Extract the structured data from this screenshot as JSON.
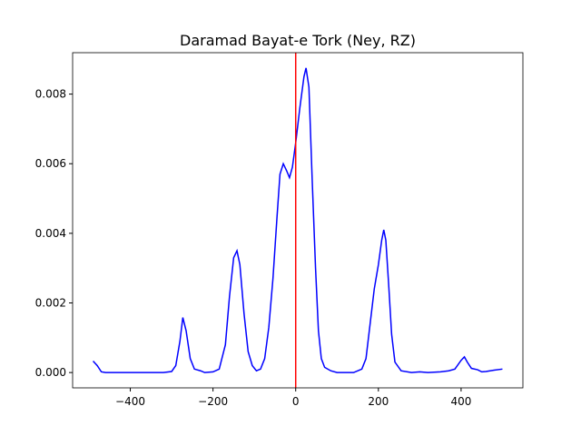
{
  "chart_data": {
    "type": "line",
    "title": "Daramad Bayat-e Tork (Ney, RZ)",
    "x": [
      -490,
      -480,
      -470,
      -460,
      -320,
      -300,
      -290,
      -280,
      -273,
      -265,
      -255,
      -245,
      -230,
      -220,
      -200,
      -185,
      -170,
      -160,
      -150,
      -142,
      -135,
      -125,
      -115,
      -105,
      -95,
      -85,
      -75,
      -65,
      -55,
      -45,
      -38,
      -30,
      -22,
      -15,
      -8,
      0,
      10,
      20,
      25,
      32,
      40,
      48,
      55,
      62,
      70,
      85,
      100,
      140,
      160,
      170,
      180,
      190,
      200,
      208,
      213,
      218,
      225,
      232,
      240,
      255,
      280,
      300,
      320,
      350,
      370,
      385,
      400,
      408,
      415,
      425,
      440,
      450,
      460,
      480,
      500
    ],
    "series": [
      {
        "color": "#0000ff",
        "values": [
          0.00033,
          0.0002,
          2e-05,
          0,
          0,
          3e-05,
          0.0002,
          0.0009,
          0.00158,
          0.0012,
          0.0004,
          0.0001,
          5e-05,
          0,
          2e-05,
          0.0001,
          0.0008,
          0.0022,
          0.0033,
          0.0035,
          0.0031,
          0.0017,
          0.0006,
          0.0002,
          5e-05,
          0.0001,
          0.0004,
          0.0013,
          0.0027,
          0.0045,
          0.0057,
          0.006,
          0.0058,
          0.0056,
          0.0059,
          0.0066,
          0.0076,
          0.0085,
          0.00875,
          0.0082,
          0.0055,
          0.003,
          0.0012,
          0.0004,
          0.00015,
          5e-05,
          0,
          0,
          0.0001,
          0.0004,
          0.0014,
          0.0024,
          0.0031,
          0.0038,
          0.0041,
          0.0038,
          0.0025,
          0.0011,
          0.0003,
          5e-05,
          0,
          2e-05,
          0,
          2e-05,
          5e-05,
          0.0001,
          0.00035,
          0.00045,
          0.0003,
          0.00012,
          8e-05,
          2e-05,
          3e-05,
          7e-05,
          0.0001
        ]
      }
    ],
    "vlines": [
      {
        "x": 0,
        "color": "#ff0000"
      }
    ],
    "xlim": [
      -539.5,
      549.5
    ],
    "xticks": [
      {
        "value": -400,
        "label": "−400"
      },
      {
        "value": -200,
        "label": "−200"
      },
      0,
      200,
      400
    ],
    "ylim": [
      -0.00044,
      0.00919
    ],
    "yticks": [
      {
        "value": 0,
        "label": "0.000"
      },
      {
        "value": 0.002,
        "label": "0.002"
      },
      {
        "value": 0.004,
        "label": "0.004"
      },
      {
        "value": 0.006,
        "label": "0.006"
      },
      {
        "value": 0.008,
        "label": "0.008"
      }
    ]
  }
}
